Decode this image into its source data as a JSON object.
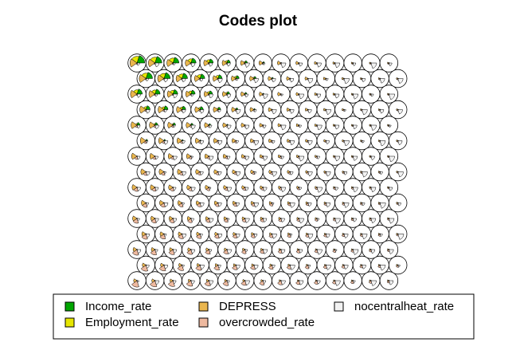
{
  "chart_data": {
    "type": "som-codes",
    "title": "Codes plot",
    "grid": {
      "columns": 15,
      "rows": 15,
      "topology": "hexagonal"
    },
    "variables": [
      {
        "name": "Income_rate",
        "color": "#00A600"
      },
      {
        "name": "Employment_rate",
        "color": "#E6E600"
      },
      {
        "name": "DEPRESS",
        "color": "#EAB64E"
      },
      {
        "name": "overcrowded_rate",
        "color": "#EEB99F"
      },
      {
        "name": "nocentralheat_rate",
        "color": "#F2F2F2"
      }
    ],
    "legend_position": "bottom",
    "legend_columns": [
      [
        "Income_rate",
        "Employment_rate"
      ],
      [
        "DEPRESS",
        "overcrowded_rate"
      ],
      [
        "nocentralheat_rate"
      ]
    ]
  }
}
